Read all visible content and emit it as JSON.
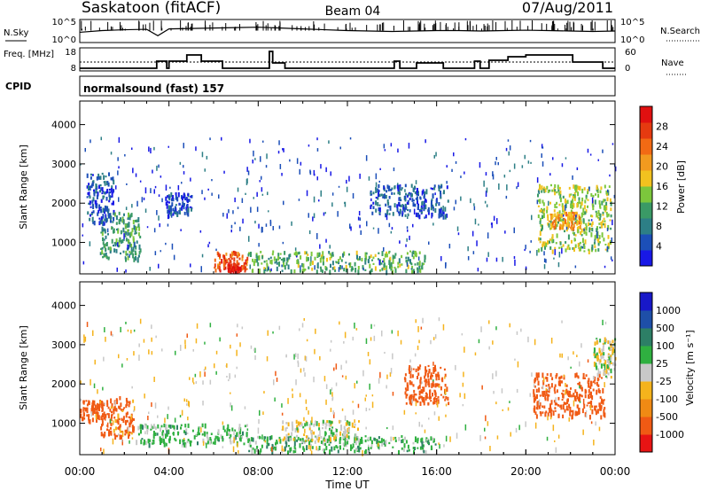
{
  "header": {
    "station": "Saskatoon (fitACF)",
    "beam": "Beam 04",
    "date": "07/Aug/2011",
    "cpid_label": "CPID",
    "cpid_value": "normalsound (fast) 157"
  },
  "colors": {
    "power": [
      "#1818e6",
      "#1c4fb8",
      "#2d7f86",
      "#3a9a66",
      "#7cc73c",
      "#f2c21f",
      "#f29a1f",
      "#f26a14",
      "#e53a10",
      "#e01010"
    ],
    "velocity": [
      "#e81414",
      "#f05a14",
      "#f08a14",
      "#f5b31c",
      "#c8c8c8",
      "#2fb040",
      "#2d7f66",
      "#1e4fa8",
      "#1818c8"
    ]
  },
  "chart_data": [
    {
      "type": "line",
      "title": "N.Sky",
      "left_label": "N.Sky",
      "right_label": "N.Search",
      "left_ticks": [
        "10^5",
        "10^0"
      ],
      "right_ticks": [
        "10^5",
        "10^0"
      ],
      "x_range_hours": [
        0,
        24
      ],
      "series": [
        {
          "x": [
            0,
            1,
            2,
            3,
            3.5,
            4,
            5,
            6,
            7,
            8,
            9,
            10,
            11,
            12,
            13,
            14,
            15,
            16,
            17,
            18,
            19,
            20,
            21,
            22,
            23,
            24
          ],
          "values": [
            2.2,
            2.6,
            2.8,
            2.9,
            1.4,
            3.0,
            3.1,
            3.2,
            3.3,
            3.4,
            3.2,
            3.0,
            2.8,
            2.6,
            2.5,
            2.4,
            2.5,
            2.6,
            2.6,
            2.5,
            2.6,
            2.7,
            2.6,
            2.5,
            2.4,
            2.5
          ]
        }
      ]
    },
    {
      "type": "line",
      "title": "Freq.",
      "left_label": "Freq. [MHz]",
      "right_label": "Nave",
      "left_ticks": [
        "18",
        "8"
      ],
      "right_ticks": [
        "60",
        "0"
      ],
      "x_range_hours": [
        0,
        24
      ],
      "series": [
        {
          "x": [
            0,
            3.45,
            3.45,
            3.9,
            3.9,
            4.0,
            4.0,
            4.8,
            4.8,
            5.45,
            5.45,
            6.4,
            6.4,
            8.5,
            8.5,
            8.65,
            8.65,
            9.2,
            9.2,
            14.1,
            14.1,
            14.35,
            14.35,
            15.1,
            15.1,
            16.3,
            16.3,
            17.7,
            17.7,
            17.95,
            17.95,
            18.35,
            18.35,
            19.2,
            19.2,
            20.0,
            20.0,
            22.1,
            22.1,
            23.45,
            23.45,
            24.0
          ],
          "values": [
            8.5,
            8.5,
            12.5,
            12.5,
            8.5,
            8.5,
            12.5,
            12.5,
            16,
            16,
            12.5,
            12.5,
            8.5,
            8.5,
            18,
            18,
            11.5,
            11.5,
            8.5,
            8.5,
            12.5,
            12.5,
            8.5,
            8.5,
            11.5,
            11.5,
            8.5,
            8.5,
            12.5,
            12.5,
            8.5,
            8.5,
            13,
            13,
            15,
            15,
            16,
            16,
            12,
            12,
            8.5,
            8.5
          ]
        }
      ]
    },
    {
      "type": "heatmap",
      "title": "Power",
      "xlabel": "Time UT",
      "ylabel": "Slant Range [km]",
      "x_ticks": [
        "00:00",
        "04:00",
        "08:00",
        "12:00",
        "16:00",
        "20:00",
        "00:00"
      ],
      "y_ticks": [
        "1000",
        "2000",
        "3000",
        "4000"
      ],
      "ylim": [
        200,
        4600
      ],
      "colorbar_label": "Power [dB]",
      "colorbar_ticks": [
        "4",
        "8",
        "12",
        "16",
        "20",
        "24",
        "28"
      ],
      "regions": [
        {
          "t": [
            0.9,
            2.7
          ],
          "r": [
            600,
            1800
          ],
          "level": 12
        },
        {
          "t": [
            0.3,
            1.5
          ],
          "r": [
            1500,
            2800
          ],
          "level": 6
        },
        {
          "t": [
            3.8,
            5.0
          ],
          "r": [
            1700,
            2300
          ],
          "level": 5
        },
        {
          "t": [
            6.0,
            7.5
          ],
          "r": [
            300,
            800
          ],
          "level": 26
        },
        {
          "t": [
            6.6,
            7.2
          ],
          "r": [
            300,
            500
          ],
          "level": 30
        },
        {
          "t": [
            7.5,
            15.5
          ],
          "r": [
            300,
            800
          ],
          "level": 14
        },
        {
          "t": [
            13.0,
            16.5
          ],
          "r": [
            1700,
            2500
          ],
          "level": 7
        },
        {
          "t": [
            20.5,
            23.8
          ],
          "r": [
            800,
            2500
          ],
          "level": 16
        },
        {
          "t": [
            21.0,
            22.5
          ],
          "r": [
            1400,
            1800
          ],
          "level": 22
        }
      ]
    },
    {
      "type": "heatmap",
      "title": "Velocity",
      "xlabel": "Time UT",
      "ylabel": "Slant Range [km]",
      "x_ticks": [
        "00:00",
        "04:00",
        "08:00",
        "12:00",
        "16:00",
        "20:00",
        "00:00"
      ],
      "y_ticks": [
        "1000",
        "2000",
        "3000",
        "4000"
      ],
      "ylim": [
        200,
        4600
      ],
      "colorbar_label": "Velocity [m s⁻¹]",
      "colorbar_ticks": [
        "1000",
        "500",
        "100",
        "25",
        "-25",
        "-100",
        "-500",
        "-1000"
      ],
      "regions": [
        {
          "t": [
            0.0,
            1.0
          ],
          "r": [
            1100,
            1600
          ],
          "level": -250
        },
        {
          "t": [
            0.9,
            2.4
          ],
          "r": [
            700,
            1700
          ],
          "level": -150
        },
        {
          "t": [
            2.5,
            7.5
          ],
          "r": [
            500,
            1000
          ],
          "level": 50
        },
        {
          "t": [
            7.5,
            16.0
          ],
          "r": [
            300,
            700
          ],
          "level": 60
        },
        {
          "t": [
            9.0,
            12.5
          ],
          "r": [
            600,
            1100
          ],
          "level": 0
        },
        {
          "t": [
            14.5,
            16.5
          ],
          "r": [
            1500,
            2500
          ],
          "level": -250
        },
        {
          "t": [
            20.3,
            23.5
          ],
          "r": [
            1200,
            2300
          ],
          "level": -250
        },
        {
          "t": [
            23.0,
            24.0
          ],
          "r": [
            2200,
            3200
          ],
          "level": 0
        }
      ]
    }
  ]
}
